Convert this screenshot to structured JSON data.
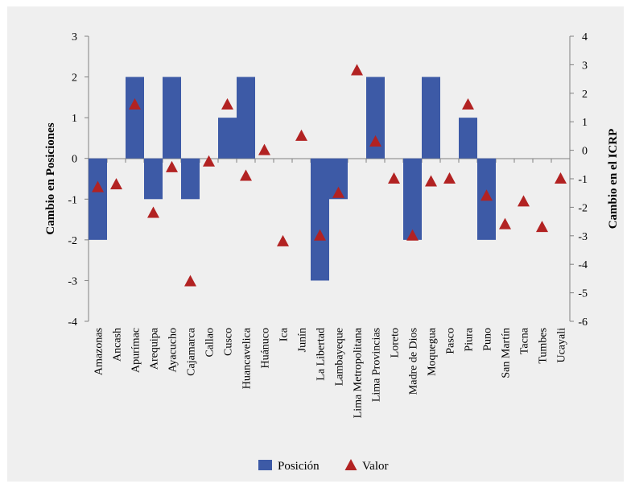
{
  "chart_data": {
    "type": "bar",
    "categories": [
      "Amazonas",
      "Ancash",
      "Apurímac",
      "Arequipa",
      "Ayacucho",
      "Cajamarca",
      "Callao",
      "Cusco",
      "Huancavelica",
      "Huánuco",
      "Ica",
      "Junín",
      "La Libertad",
      "Lambayeque",
      "Lima Metropolitana",
      "Lima Provincias",
      "Loreto",
      "Madre de Dios",
      "Moquegua",
      "Pasco",
      "Piura",
      "Puno",
      "San Martín",
      "Tacna",
      "Tumbes",
      "Ucayali"
    ],
    "series": [
      {
        "name": "Posición",
        "type": "bar",
        "axis": "left",
        "color": "#3d5aa6",
        "values": [
          -2,
          0,
          2,
          -1,
          2,
          -1,
          0,
          1,
          2,
          0,
          0,
          0,
          -3,
          -1,
          0,
          2,
          0,
          -2,
          2,
          0,
          1,
          -2,
          0,
          0,
          0,
          0
        ]
      },
      {
        "name": "Valor",
        "type": "scatter",
        "marker": "triangle",
        "axis": "right",
        "color": "#b22222",
        "values": [
          -1.3,
          -1.2,
          1.6,
          -2.2,
          -0.6,
          -4.6,
          -0.4,
          1.6,
          -0.9,
          0.0,
          -3.2,
          0.5,
          -3.0,
          -1.5,
          2.8,
          0.3,
          -1.0,
          -3.0,
          -1.1,
          -1.0,
          1.6,
          -1.6,
          -2.6,
          -1.8,
          -2.7,
          -1.0
        ]
      }
    ],
    "ylabel": "Cambio en Posiciones",
    "y2label": "Cambio en el ICRP",
    "ylim": [
      -4,
      3
    ],
    "y2lim": [
      -6,
      4
    ],
    "yticks": [
      "3",
      "2",
      "1",
      "0",
      "-1",
      "-2",
      "-3",
      "-4"
    ],
    "y2ticks": [
      "4",
      "3",
      "2",
      "1",
      "0",
      "-1",
      "-2",
      "-3",
      "-4",
      "-5",
      "-6"
    ],
    "legend_position": "bottom",
    "grid": false
  }
}
